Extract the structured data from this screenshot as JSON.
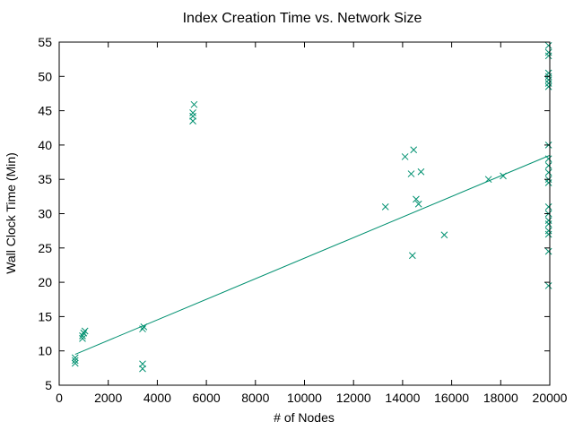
{
  "chart_data": {
    "type": "scatter",
    "title": "Index Creation Time vs. Network Size",
    "xlabel": "# of Nodes",
    "ylabel": "Wall Clock Time (Min)",
    "xlim": [
      0,
      20000
    ],
    "ylim": [
      5,
      55
    ],
    "xticks": [
      0,
      2000,
      4000,
      6000,
      8000,
      10000,
      12000,
      14000,
      16000,
      18000,
      20000
    ],
    "yticks": [
      5,
      10,
      15,
      20,
      25,
      30,
      35,
      40,
      45,
      50,
      55
    ],
    "grid": false,
    "legend": "none",
    "marker": "x",
    "color": "#009070",
    "points": [
      [
        650,
        8.2
      ],
      [
        650,
        8.6
      ],
      [
        650,
        9.0
      ],
      [
        950,
        11.8
      ],
      [
        950,
        12.2
      ],
      [
        1000,
        12.6
      ],
      [
        1050,
        12.9
      ],
      [
        3400,
        7.4
      ],
      [
        3400,
        8.1
      ],
      [
        3400,
        13.2
      ],
      [
        3450,
        13.5
      ],
      [
        5450,
        43.5
      ],
      [
        5450,
        44.2
      ],
      [
        5450,
        44.7
      ],
      [
        5500,
        45.9
      ],
      [
        13300,
        31.0
      ],
      [
        14100,
        38.3
      ],
      [
        14350,
        35.8
      ],
      [
        14450,
        39.3
      ],
      [
        14550,
        32.1
      ],
      [
        14650,
        31.4
      ],
      [
        14750,
        36.1
      ],
      [
        14400,
        23.9
      ],
      [
        15700,
        26.9
      ],
      [
        17500,
        35.0
      ],
      [
        18100,
        35.5
      ],
      [
        19950,
        19.5
      ],
      [
        19950,
        24.5
      ],
      [
        19950,
        27.0
      ],
      [
        19950,
        27.5
      ],
      [
        19950,
        28.5
      ],
      [
        19950,
        29.0
      ],
      [
        19950,
        30.0
      ],
      [
        19950,
        31.0
      ],
      [
        19950,
        34.5
      ],
      [
        19950,
        35.0
      ],
      [
        19950,
        36.0
      ],
      [
        19950,
        37.0
      ],
      [
        19950,
        38.0
      ],
      [
        19950,
        40.0
      ],
      [
        19950,
        48.5
      ],
      [
        19950,
        49.0
      ],
      [
        19950,
        49.5
      ],
      [
        19950,
        50.0
      ],
      [
        19950,
        50.5
      ],
      [
        19950,
        53.0
      ],
      [
        19950,
        53.5
      ],
      [
        19950,
        54.5
      ]
    ],
    "trendline": {
      "x": [
        650,
        20000
      ],
      "y": [
        9.5,
        38.5
      ]
    }
  }
}
